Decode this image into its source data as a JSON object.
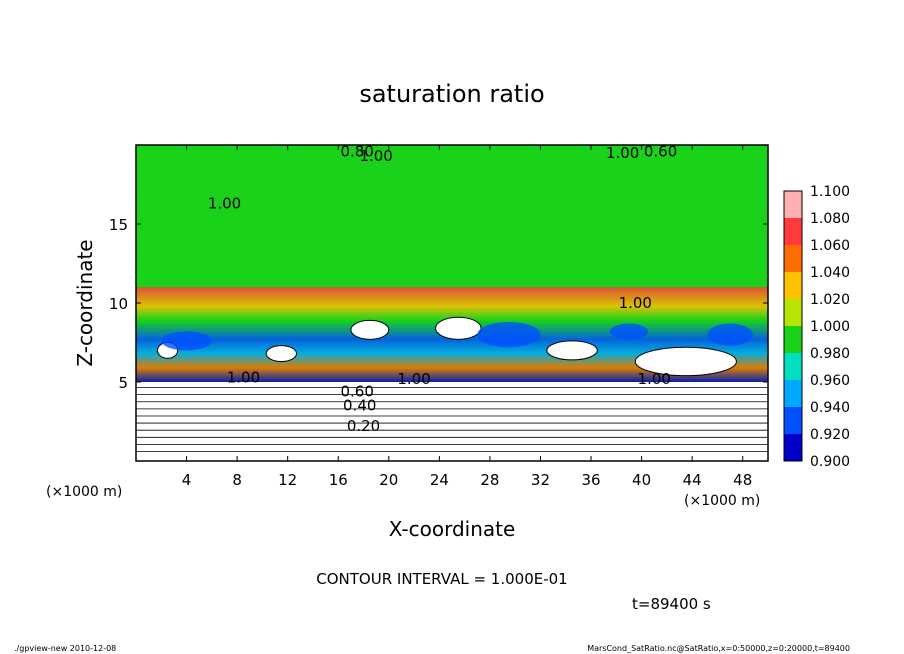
{
  "chart_data": {
    "type": "heatmap",
    "title": "saturation ratio",
    "xlabel": "X-coordinate",
    "ylabel": "Z-coordinate",
    "x_unit": "(×1000 m)",
    "z_unit": "(×1000 m)",
    "xlim": [
      0,
      50
    ],
    "zlim": [
      0,
      20
    ],
    "x_ticks": [
      "4",
      "8",
      "12",
      "16",
      "20",
      "24",
      "28",
      "32",
      "36",
      "40",
      "44",
      "48"
    ],
    "z_ticks": [
      "5",
      "10",
      "15"
    ],
    "colorbar": {
      "levels": [
        "1.100",
        "1.080",
        "1.060",
        "1.040",
        "1.020",
        "1.000",
        "0.980",
        "0.960",
        "0.940",
        "0.920",
        "0.900"
      ],
      "colors": [
        "#ffb0b0",
        "#ff3b3b",
        "#ff6d00",
        "#ffc000",
        "#b7e400",
        "#19d219",
        "#00e0c0",
        "#00a8ff",
        "#0050ff",
        "#0000c8",
        "#6400a0"
      ]
    },
    "contour_labels": [
      {
        "text": "0.20",
        "x": 18.0,
        "z": 2.2
      },
      {
        "text": "0.40",
        "x": 17.7,
        "z": 3.5
      },
      {
        "text": "0.60",
        "x": 17.5,
        "z": 4.4
      },
      {
        "text": "1.00",
        "x": 8.5,
        "z": 5.3
      },
      {
        "text": "1.00",
        "x": 22.0,
        "z": 5.2
      },
      {
        "text": "1.00",
        "x": 41.0,
        "z": 5.2
      },
      {
        "text": "1.00",
        "x": 39.5,
        "z": 10.0
      },
      {
        "text": "1.00",
        "x": 7.0,
        "z": 16.3
      },
      {
        "text": "0.80",
        "x": 17.5,
        "z": 19.6
      },
      {
        "text": "1.00",
        "x": 19.0,
        "z": 19.3
      },
      {
        "text": "1.00",
        "x": 38.5,
        "z": 19.5
      },
      {
        "text": "0.60",
        "x": 41.5,
        "z": 19.6
      }
    ],
    "contour_interval": "CONTOUR INTERVAL = 1.000E-01",
    "time": "t=89400 s"
  },
  "footer": {
    "left": "./gpview-new  2010-12-08",
    "right": "MarsCond_SatRatio.nc@SatRatio,x=0:50000,z=0:20000,t=89400"
  }
}
